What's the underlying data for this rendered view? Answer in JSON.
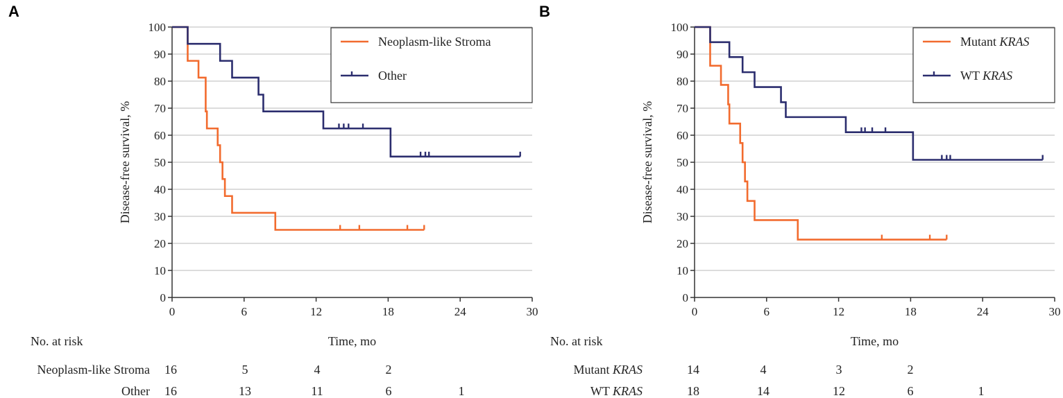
{
  "chart_data": [
    {
      "type": "line",
      "subtype": "kaplan-meier",
      "panel_label": "A",
      "xlabel": "Time, mo",
      "ylabel": "Disease-free survival, %",
      "xlim": [
        0,
        30
      ],
      "ylim": [
        0,
        100
      ],
      "x_ticks": [
        0,
        6,
        12,
        18,
        24,
        30
      ],
      "y_ticks": [
        0,
        10,
        20,
        30,
        40,
        50,
        60,
        70,
        80,
        90,
        100
      ],
      "grid": "horizontal",
      "legend_position": "top-right",
      "series": [
        {
          "name": "Neoplasm-like Stroma",
          "color": "#f26b2e",
          "steps": [
            [
              0,
              100
            ],
            [
              1.3,
              87.5
            ],
            [
              2.2,
              81.3
            ],
            [
              2.8,
              68.8
            ],
            [
              2.9,
              62.5
            ],
            [
              3.8,
              56.3
            ],
            [
              4.0,
              50.0
            ],
            [
              4.2,
              43.8
            ],
            [
              4.4,
              37.5
            ],
            [
              5.0,
              31.3
            ],
            [
              8.6,
              25.0
            ],
            [
              21.0,
              25.0
            ]
          ],
          "censored": [
            [
              14.0,
              25.0
            ],
            [
              15.6,
              25.0
            ],
            [
              19.6,
              25.0
            ],
            [
              21.0,
              25.0
            ]
          ]
        },
        {
          "name": "Other",
          "color": "#2b2d6e",
          "steps": [
            [
              0,
              100
            ],
            [
              1.3,
              93.8
            ],
            [
              4.0,
              87.5
            ],
            [
              5.0,
              81.3
            ],
            [
              7.2,
              75.0
            ],
            [
              7.6,
              68.8
            ],
            [
              12.6,
              62.5
            ],
            [
              18.2,
              52.1
            ],
            [
              29.0,
              52.1
            ]
          ],
          "censored": [
            [
              13.9,
              62.5
            ],
            [
              14.3,
              62.5
            ],
            [
              14.7,
              62.5
            ],
            [
              15.9,
              62.5
            ],
            [
              20.7,
              52.1
            ],
            [
              21.1,
              52.1
            ],
            [
              21.4,
              52.1
            ],
            [
              29.0,
              52.1
            ]
          ]
        }
      ],
      "risk_table": {
        "title": "No. at risk",
        "time_points": [
          0,
          6,
          12,
          18,
          24
        ],
        "rows": [
          {
            "label": "Neoplasm-like Stroma",
            "values": [
              "16",
              "5",
              "4",
              "2",
              ""
            ]
          },
          {
            "label": "Other",
            "values": [
              "16",
              "13",
              "11",
              "6",
              "1"
            ]
          }
        ]
      }
    },
    {
      "type": "line",
      "subtype": "kaplan-meier",
      "panel_label": "B",
      "xlabel": "Time, mo",
      "ylabel": "Disease-free survival, %",
      "xlim": [
        0,
        30
      ],
      "ylim": [
        0,
        100
      ],
      "x_ticks": [
        0,
        6,
        12,
        18,
        24,
        30
      ],
      "y_ticks": [
        0,
        10,
        20,
        30,
        40,
        50,
        60,
        70,
        80,
        90,
        100
      ],
      "grid": "horizontal",
      "legend_position": "top-right",
      "series": [
        {
          "name": "Mutant KRAS",
          "name_prefix": "Mutant ",
          "name_italic": "KRAS",
          "color": "#f26b2e",
          "steps": [
            [
              0,
              100
            ],
            [
              1.3,
              85.7
            ],
            [
              2.2,
              78.6
            ],
            [
              2.8,
              71.4
            ],
            [
              2.9,
              64.3
            ],
            [
              3.8,
              57.1
            ],
            [
              4.0,
              50.0
            ],
            [
              4.2,
              42.9
            ],
            [
              4.4,
              35.7
            ],
            [
              5.0,
              28.6
            ],
            [
              8.6,
              21.4
            ],
            [
              21.0,
              21.4
            ]
          ],
          "censored": [
            [
              15.6,
              21.4
            ],
            [
              19.6,
              21.4
            ],
            [
              21.0,
              21.4
            ]
          ]
        },
        {
          "name": "WT KRAS",
          "name_prefix": "WT ",
          "name_italic": "KRAS",
          "color": "#2b2d6e",
          "steps": [
            [
              0,
              100
            ],
            [
              1.3,
              94.4
            ],
            [
              2.9,
              88.9
            ],
            [
              4.0,
              83.3
            ],
            [
              5.0,
              77.8
            ],
            [
              7.2,
              72.2
            ],
            [
              7.6,
              66.7
            ],
            [
              12.6,
              61.1
            ],
            [
              18.2,
              50.9
            ],
            [
              29.0,
              50.9
            ]
          ],
          "censored": [
            [
              13.9,
              61.1
            ],
            [
              14.2,
              61.1
            ],
            [
              14.8,
              61.1
            ],
            [
              15.9,
              61.1
            ],
            [
              20.6,
              50.9
            ],
            [
              21.0,
              50.9
            ],
            [
              21.3,
              50.9
            ],
            [
              29.0,
              50.9
            ]
          ]
        }
      ],
      "risk_table": {
        "title": "No. at risk",
        "time_points": [
          0,
          6,
          12,
          18,
          24
        ],
        "rows": [
          {
            "label": "Mutant KRAS",
            "label_prefix": "Mutant ",
            "label_italic": "KRAS",
            "values": [
              "14",
              "4",
              "3",
              "2",
              ""
            ]
          },
          {
            "label": "WT KRAS",
            "label_prefix": "WT ",
            "label_italic": "KRAS",
            "values": [
              "18",
              "14",
              "12",
              "6",
              "1"
            ]
          }
        ]
      }
    }
  ]
}
